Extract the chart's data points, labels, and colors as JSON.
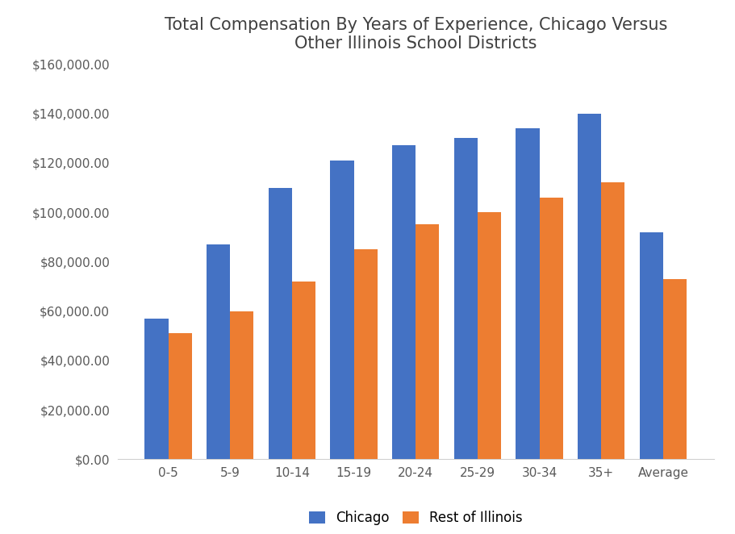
{
  "title": "Total Compensation By Years of Experience, Chicago Versus\nOther Illinois School Districts",
  "categories": [
    "0-5",
    "5-9",
    "10-14",
    "15-19",
    "20-24",
    "25-29",
    "30-34",
    "35+",
    "Average"
  ],
  "chicago": [
    57000,
    87000,
    110000,
    121000,
    127000,
    130000,
    134000,
    140000,
    92000
  ],
  "rest_of_illinois": [
    51000,
    60000,
    72000,
    85000,
    95000,
    100000,
    106000,
    112000,
    73000
  ],
  "chicago_color": "#4472C4",
  "illinois_color": "#ED7D31",
  "chicago_label": "Chicago",
  "illinois_label": "Rest of Illinois",
  "ylim": [
    0,
    160000
  ],
  "yticks": [
    0,
    20000,
    40000,
    60000,
    80000,
    100000,
    120000,
    140000,
    160000
  ],
  "title_fontsize": 15,
  "tick_fontsize": 11,
  "legend_fontsize": 12,
  "background_color": "#ffffff",
  "title_color": "#404040",
  "tick_color": "#595959",
  "bar_width": 0.38
}
